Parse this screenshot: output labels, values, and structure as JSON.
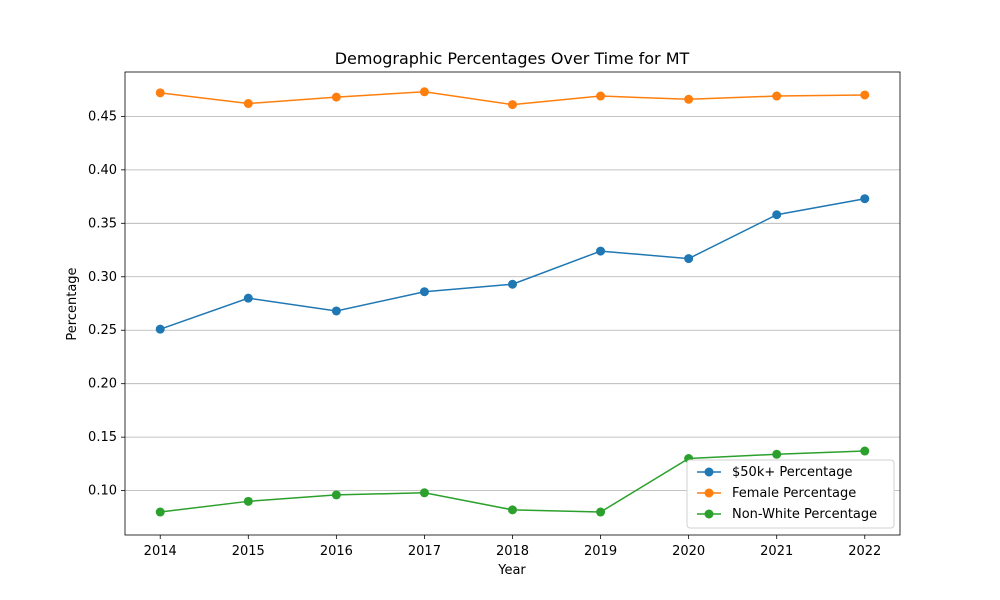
{
  "chart_data": {
    "type": "line",
    "title": "Demographic Percentages Over Time for MT",
    "xlabel": "Year",
    "ylabel": "Percentage",
    "x": [
      2014,
      2015,
      2016,
      2017,
      2018,
      2019,
      2020,
      2021,
      2022
    ],
    "ylim": [
      0.0585,
      0.4915
    ],
    "xlim": [
      2013.6,
      2022.4
    ],
    "y_ticks": [
      0.1,
      0.15,
      0.2,
      0.25,
      0.3,
      0.35,
      0.4,
      0.45
    ],
    "y_tick_labels": [
      "0.10",
      "0.15",
      "0.20",
      "0.25",
      "0.30",
      "0.35",
      "0.40",
      "0.45"
    ],
    "x_tick_labels": [
      "2014",
      "2015",
      "2016",
      "2017",
      "2018",
      "2019",
      "2020",
      "2021",
      "2022"
    ],
    "grid": "horizontal",
    "legend_position": "bottom-right",
    "series": [
      {
        "name": "$50k+ Percentage",
        "color": "#1f77b4",
        "values": [
          0.251,
          0.28,
          0.268,
          0.286,
          0.293,
          0.324,
          0.317,
          0.358,
          0.373
        ]
      },
      {
        "name": "Female Percentage",
        "color": "#ff7f0e",
        "values": [
          0.472,
          0.462,
          0.468,
          0.473,
          0.461,
          0.469,
          0.466,
          0.469,
          0.47
        ]
      },
      {
        "name": "Non-White Percentage",
        "color": "#2ca02c",
        "values": [
          0.08,
          0.09,
          0.096,
          0.098,
          0.082,
          0.08,
          0.13,
          0.134,
          0.137
        ]
      }
    ]
  }
}
